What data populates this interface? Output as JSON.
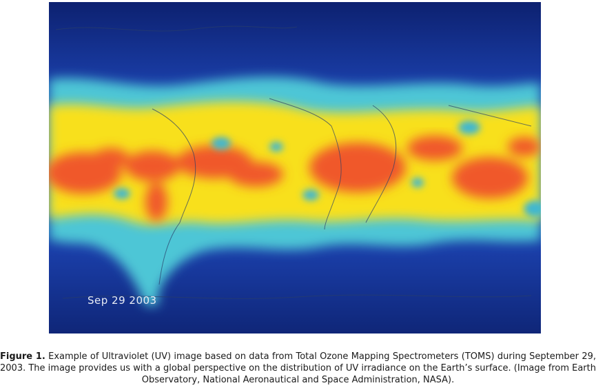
{
  "figure": {
    "date_label": "Sep 29 2003",
    "colors": {
      "low": "#1a3ea8",
      "low_mid": "#4fc8d8",
      "mid": "#f8e21c",
      "high": "#f25a2a"
    }
  },
  "caption": {
    "label": "Figure 1.",
    "text": " Example of Ultraviolet (UV) image based on data from Total Ozone Mapping Spectrometers (TOMS) during September 29, 2003. The image provides us with a global perspective on the distribution of UV irradiance on the Earth’s surface. (Image from Earth Observatory, National Aeronautical and Space Administration, NASA)."
  }
}
